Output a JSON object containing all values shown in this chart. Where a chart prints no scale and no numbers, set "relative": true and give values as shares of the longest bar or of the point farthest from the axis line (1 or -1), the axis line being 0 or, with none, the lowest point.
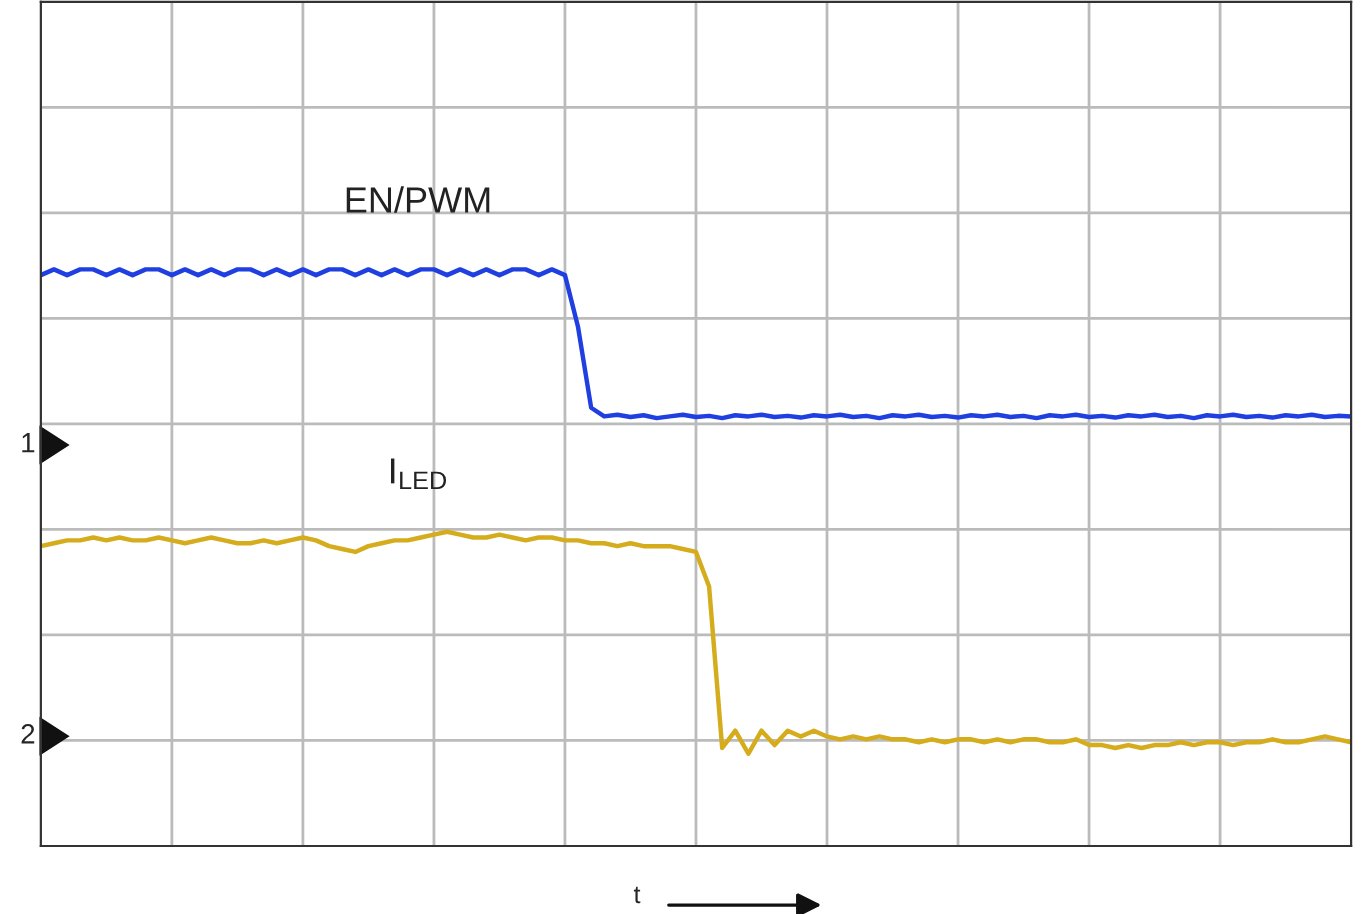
{
  "chart_data": {
    "type": "line",
    "relative": true,
    "xlabel": "t",
    "grid": true,
    "legend": false,
    "categories": [
      null,
      null,
      null,
      null,
      null,
      null,
      null,
      null,
      null,
      null,
      null,
      null,
      null,
      null,
      null,
      null,
      null,
      null,
      null,
      null,
      null,
      null,
      null,
      null,
      null,
      null,
      null,
      null,
      null,
      null,
      null,
      null,
      null,
      null,
      null,
      null,
      null,
      null,
      null,
      null,
      null,
      null,
      null,
      null,
      null,
      null,
      null,
      null,
      null,
      null,
      null,
      null,
      null,
      null,
      null,
      null,
      null,
      null,
      null,
      null,
      null,
      null,
      null,
      null,
      null,
      null,
      null,
      null,
      null,
      null,
      null,
      null,
      null,
      null,
      null,
      null,
      null,
      null,
      null,
      null,
      null,
      null,
      null,
      null,
      null,
      null,
      null,
      null,
      null,
      null,
      null,
      null,
      null,
      null,
      null,
      null,
      null,
      null,
      null,
      null,
      null
    ],
    "series": [
      {
        "name": "EN/PWM",
        "color": "#1f3fe0",
        "values": [
          0.99,
          1.0,
          0.99,
          1.0,
          1.0,
          0.99,
          1.0,
          0.99,
          1.0,
          1.0,
          0.99,
          1.0,
          0.99,
          1.0,
          0.99,
          1.0,
          1.0,
          0.99,
          1.0,
          0.99,
          1.0,
          0.99,
          1.0,
          1.0,
          0.99,
          1.0,
          0.99,
          1.0,
          0.99,
          1.0,
          1.0,
          0.99,
          1.0,
          0.99,
          1.0,
          0.99,
          1.0,
          1.0,
          0.99,
          1.0,
          0.99,
          0.9,
          0.76,
          0.745,
          0.748,
          0.744,
          0.747,
          0.742,
          0.745,
          0.748,
          0.744,
          0.746,
          0.742,
          0.747,
          0.745,
          0.748,
          0.744,
          0.746,
          0.743,
          0.747,
          0.745,
          0.748,
          0.744,
          0.746,
          0.742,
          0.747,
          0.745,
          0.748,
          0.744,
          0.746,
          0.743,
          0.747,
          0.745,
          0.748,
          0.744,
          0.746,
          0.742,
          0.747,
          0.745,
          0.748,
          0.744,
          0.746,
          0.743,
          0.747,
          0.745,
          0.748,
          0.744,
          0.746,
          0.742,
          0.747,
          0.745,
          0.748,
          0.744,
          0.746,
          0.743,
          0.747,
          0.745,
          0.748,
          0.744,
          0.746,
          0.745
        ]
      },
      {
        "name": "I$_{LED}$",
        "color": "#d4ac1c",
        "values": [
          0.52,
          0.525,
          0.53,
          0.53,
          0.535,
          0.53,
          0.535,
          0.53,
          0.53,
          0.535,
          0.53,
          0.525,
          0.53,
          0.535,
          0.53,
          0.525,
          0.525,
          0.53,
          0.525,
          0.53,
          0.535,
          0.53,
          0.52,
          0.515,
          0.51,
          0.52,
          0.525,
          0.53,
          0.53,
          0.535,
          0.54,
          0.545,
          0.54,
          0.535,
          0.535,
          0.54,
          0.535,
          0.53,
          0.535,
          0.535,
          0.53,
          0.53,
          0.525,
          0.525,
          0.52,
          0.525,
          0.52,
          0.52,
          0.52,
          0.515,
          0.51,
          0.45,
          0.17,
          0.2,
          0.16,
          0.2,
          0.175,
          0.2,
          0.19,
          0.2,
          0.19,
          0.185,
          0.19,
          0.185,
          0.19,
          0.185,
          0.185,
          0.18,
          0.185,
          0.18,
          0.185,
          0.185,
          0.18,
          0.185,
          0.18,
          0.185,
          0.185,
          0.18,
          0.18,
          0.185,
          0.175,
          0.175,
          0.17,
          0.175,
          0.17,
          0.175,
          0.175,
          0.18,
          0.175,
          0.18,
          0.18,
          0.175,
          0.18,
          0.18,
          0.185,
          0.18,
          0.18,
          0.185,
          0.19,
          0.185,
          0.18
        ]
      }
    ],
    "annotations": [
      "1",
      "2"
    ]
  }
}
